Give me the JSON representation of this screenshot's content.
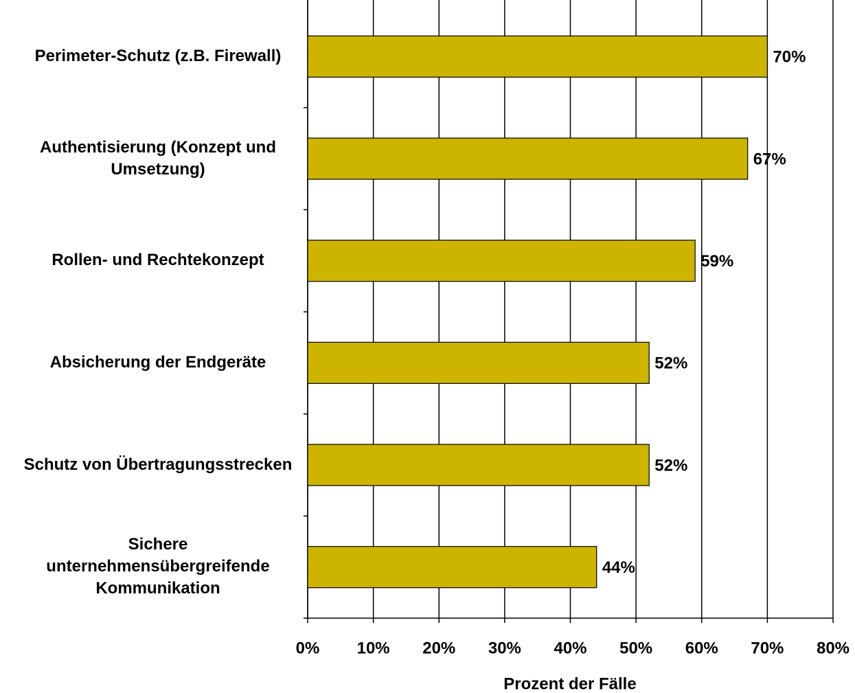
{
  "chart_data": {
    "type": "bar",
    "orientation": "horizontal",
    "categories": [
      "Perimeter-Schutz (z.B. Firewall)",
      "Authentisierung (Konzept und Umsetzung)",
      "Rollen- und Rechtekonzept",
      "Absicherung der Endgeräte",
      "Schutz von Übertragungsstrecken",
      "Sichere unternehmensübergreifende Kommunikation"
    ],
    "values": [
      70,
      67,
      59,
      52,
      52,
      44
    ],
    "value_labels": [
      "70%",
      "67%",
      "59%",
      "52%",
      "52%",
      "44%"
    ],
    "color": "#ccb400",
    "xlabel": "Prozent der Fälle",
    "xlim": [
      0,
      80
    ],
    "xticks": [
      {
        "value": 0,
        "label": "0%"
      },
      {
        "value": 10,
        "label": "10%"
      },
      {
        "value": 20,
        "label": "20%"
      },
      {
        "value": 30,
        "label": "30%"
      },
      {
        "value": 40,
        "label": "40%"
      },
      {
        "value": 50,
        "label": "50%"
      },
      {
        "value": 60,
        "label": "60%"
      },
      {
        "value": 70,
        "label": "70%"
      },
      {
        "value": 80,
        "label": "80%"
      }
    ],
    "grid": true
  }
}
